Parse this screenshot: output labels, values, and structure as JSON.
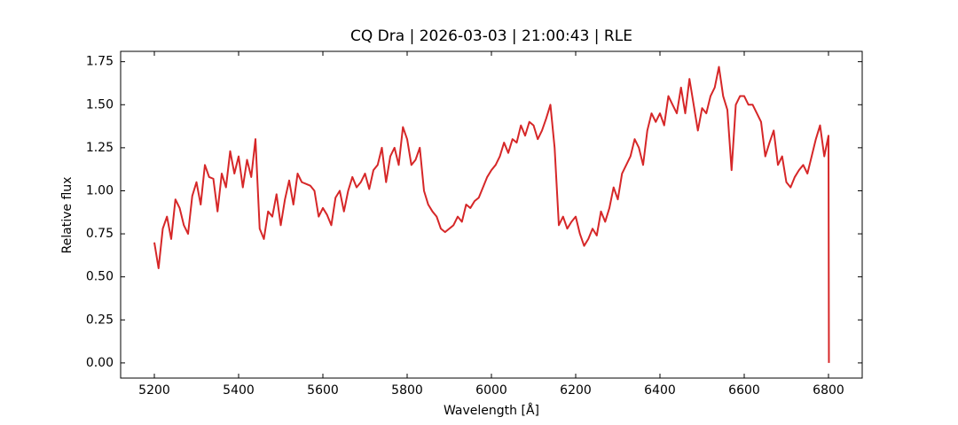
{
  "chart_data": {
    "type": "line",
    "title": "CQ Dra | 2026-03-03 | 21:00:43 | RLE",
    "xlabel": "Wavelength [Å]",
    "ylabel": "Relative flux",
    "xlim": [
      5120,
      6880
    ],
    "ylim": [
      -0.088,
      1.81
    ],
    "xticks": [
      5200,
      5400,
      5600,
      5800,
      6000,
      6200,
      6400,
      6600,
      6800
    ],
    "yticks": [
      {
        "value": 0,
        "label": "0.00"
      },
      {
        "value": 0.25,
        "label": "0.25"
      },
      {
        "value": 0.5,
        "label": "0.50"
      },
      {
        "value": 0.75,
        "label": "0.75"
      },
      {
        "value": 1.0,
        "label": "1.00"
      },
      {
        "value": 1.25,
        "label": "1.25"
      },
      {
        "value": 1.5,
        "label": "1.50"
      },
      {
        "value": 1.75,
        "label": "1.75"
      }
    ],
    "x": [
      5200,
      5210,
      5220,
      5230,
      5240,
      5250,
      5260,
      5270,
      5280,
      5290,
      5300,
      5310,
      5320,
      5330,
      5340,
      5350,
      5360,
      5370,
      5380,
      5390,
      5400,
      5410,
      5420,
      5430,
      5440,
      5450,
      5460,
      5470,
      5480,
      5490,
      5500,
      5510,
      5520,
      5530,
      5540,
      5550,
      5560,
      5570,
      5580,
      5590,
      5600,
      5610,
      5620,
      5630,
      5640,
      5650,
      5660,
      5670,
      5680,
      5690,
      5700,
      5710,
      5720,
      5730,
      5740,
      5750,
      5760,
      5770,
      5780,
      5790,
      5800,
      5810,
      5820,
      5830,
      5840,
      5850,
      5860,
      5870,
      5880,
      5890,
      5900,
      5910,
      5920,
      5930,
      5940,
      5950,
      5960,
      5970,
      5980,
      5990,
      6000,
      6010,
      6020,
      6030,
      6040,
      6050,
      6060,
      6070,
      6080,
      6090,
      6100,
      6110,
      6120,
      6130,
      6140,
      6150,
      6160,
      6170,
      6180,
      6190,
      6200,
      6210,
      6220,
      6230,
      6240,
      6250,
      6260,
      6270,
      6280,
      6290,
      6300,
      6310,
      6320,
      6330,
      6340,
      6350,
      6360,
      6370,
      6380,
      6390,
      6400,
      6410,
      6420,
      6430,
      6440,
      6450,
      6460,
      6470,
      6480,
      6490,
      6500,
      6510,
      6520,
      6530,
      6540,
      6550,
      6560,
      6570,
      6580,
      6590,
      6600,
      6610,
      6620,
      6630,
      6640,
      6650,
      6660,
      6670,
      6680,
      6690,
      6700,
      6710,
      6720,
      6730,
      6740,
      6750,
      6760,
      6770,
      6780,
      6790,
      6800,
      6801
    ],
    "series": [
      {
        "name": "flux",
        "color": "#d62728",
        "values": [
          0.7,
          0.55,
          0.78,
          0.85,
          0.72,
          0.95,
          0.9,
          0.8,
          0.75,
          0.97,
          1.05,
          0.92,
          1.15,
          1.08,
          1.07,
          0.88,
          1.1,
          1.02,
          1.23,
          1.1,
          1.2,
          1.02,
          1.18,
          1.08,
          1.3,
          0.78,
          0.72,
          0.88,
          0.85,
          0.98,
          0.8,
          0.95,
          1.06,
          0.92,
          1.1,
          1.05,
          1.04,
          1.03,
          1.0,
          0.85,
          0.9,
          0.86,
          0.8,
          0.96,
          1.0,
          0.88,
          1.0,
          1.08,
          1.02,
          1.05,
          1.1,
          1.01,
          1.12,
          1.15,
          1.25,
          1.05,
          1.2,
          1.25,
          1.15,
          1.37,
          1.3,
          1.15,
          1.18,
          1.25,
          1.0,
          0.92,
          0.88,
          0.85,
          0.78,
          0.76,
          0.78,
          0.8,
          0.85,
          0.82,
          0.92,
          0.9,
          0.94,
          0.96,
          1.02,
          1.08,
          1.12,
          1.15,
          1.2,
          1.28,
          1.22,
          1.3,
          1.28,
          1.38,
          1.32,
          1.4,
          1.38,
          1.3,
          1.35,
          1.42,
          1.5,
          1.25,
          0.8,
          0.85,
          0.78,
          0.82,
          0.85,
          0.75,
          0.68,
          0.72,
          0.78,
          0.74,
          0.88,
          0.82,
          0.9,
          1.02,
          0.95,
          1.1,
          1.15,
          1.2,
          1.3,
          1.25,
          1.15,
          1.35,
          1.45,
          1.4,
          1.45,
          1.38,
          1.55,
          1.5,
          1.45,
          1.6,
          1.45,
          1.65,
          1.5,
          1.35,
          1.48,
          1.45,
          1.55,
          1.6,
          1.72,
          1.55,
          1.47,
          1.12,
          1.5,
          1.55,
          1.55,
          1.5,
          1.5,
          1.45,
          1.4,
          1.2,
          1.28,
          1.35,
          1.15,
          1.2,
          1.05,
          1.02,
          1.08,
          1.12,
          1.15,
          1.1,
          1.2,
          1.3,
          1.38,
          1.2,
          1.32,
          0.0
        ]
      }
    ]
  }
}
